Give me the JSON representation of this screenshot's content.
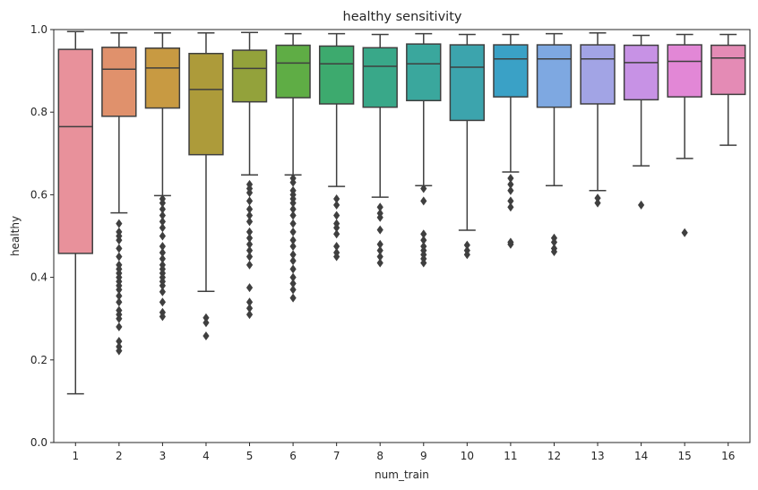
{
  "chart_data": {
    "type": "box",
    "title": "healthy sensitivity",
    "xlabel": "num_train",
    "ylabel": "healthy",
    "ylim": [
      0.0,
      1.0
    ],
    "yticks": [
      0.0,
      0.2,
      0.4,
      0.6,
      0.8,
      1.0
    ],
    "ytick_labels": [
      "0.0",
      "0.2",
      "0.4",
      "0.6",
      "0.8",
      "1.0"
    ],
    "grid": false,
    "legend": "none",
    "categories": [
      "1",
      "2",
      "3",
      "4",
      "5",
      "6",
      "7",
      "8",
      "9",
      "10",
      "11",
      "12",
      "13",
      "14",
      "15",
      "16"
    ],
    "colors": [
      "#e8919b",
      "#e0916c",
      "#c89a42",
      "#ad9b3a",
      "#93a23b",
      "#5fad45",
      "#3daa6e",
      "#39a889",
      "#3aa79d",
      "#3ca4ad",
      "#3aa1c6",
      "#7ea8e1",
      "#a2a4e5",
      "#c792e5",
      "#e287d6",
      "#e48bb5"
    ],
    "boxes": [
      {
        "whislo": 0.118,
        "q1": 0.458,
        "med": 0.765,
        "q3": 0.952,
        "whishi": 0.995,
        "fliers": []
      },
      {
        "whislo": 0.556,
        "q1": 0.79,
        "med": 0.904,
        "q3": 0.957,
        "whishi": 0.992,
        "fliers": [
          0.53,
          0.51,
          0.5,
          0.49,
          0.47,
          0.45,
          0.43,
          0.42,
          0.41,
          0.4,
          0.39,
          0.38,
          0.37,
          0.355,
          0.34,
          0.32,
          0.31,
          0.3,
          0.28,
          0.245,
          0.232,
          0.222
        ]
      },
      {
        "whislo": 0.598,
        "q1": 0.81,
        "med": 0.907,
        "q3": 0.955,
        "whishi": 0.992,
        "fliers": [
          0.59,
          0.58,
          0.565,
          0.55,
          0.535,
          0.52,
          0.5,
          0.475,
          0.46,
          0.445,
          0.43,
          0.42,
          0.41,
          0.4,
          0.39,
          0.38,
          0.365,
          0.34,
          0.315,
          0.305
        ]
      },
      {
        "whislo": 0.366,
        "q1": 0.697,
        "med": 0.855,
        "q3": 0.942,
        "whishi": 0.992,
        "fliers": [
          0.302,
          0.29,
          0.258
        ]
      },
      {
        "whislo": 0.648,
        "q1": 0.825,
        "med": 0.906,
        "q3": 0.95,
        "whishi": 0.993,
        "fliers": [
          0.625,
          0.615,
          0.605,
          0.585,
          0.565,
          0.55,
          0.535,
          0.51,
          0.495,
          0.48,
          0.465,
          0.45,
          0.43,
          0.375,
          0.34,
          0.325,
          0.31
        ]
      },
      {
        "whislo": 0.648,
        "q1": 0.835,
        "med": 0.919,
        "q3": 0.962,
        "whishi": 0.99,
        "fliers": [
          0.64,
          0.63,
          0.61,
          0.6,
          0.59,
          0.58,
          0.565,
          0.55,
          0.53,
          0.51,
          0.49,
          0.475,
          0.455,
          0.44,
          0.42,
          0.4,
          0.385,
          0.37,
          0.35
        ]
      },
      {
        "whislo": 0.62,
        "q1": 0.82,
        "med": 0.917,
        "q3": 0.96,
        "whishi": 0.99,
        "fliers": [
          0.59,
          0.575,
          0.55,
          0.53,
          0.52,
          0.505,
          0.475,
          0.46,
          0.45
        ]
      },
      {
        "whislo": 0.594,
        "q1": 0.812,
        "med": 0.911,
        "q3": 0.956,
        "whishi": 0.988,
        "fliers": [
          0.57,
          0.555,
          0.545,
          0.515,
          0.48,
          0.465,
          0.45,
          0.435
        ]
      },
      {
        "whislo": 0.622,
        "q1": 0.828,
        "med": 0.917,
        "q3": 0.965,
        "whishi": 0.99,
        "fliers": [
          0.615,
          0.585,
          0.505,
          0.49,
          0.475,
          0.465,
          0.455,
          0.445,
          0.435
        ]
      },
      {
        "whislo": 0.514,
        "q1": 0.78,
        "med": 0.909,
        "q3": 0.963,
        "whishi": 0.988,
        "fliers": [
          0.478,
          0.465,
          0.455
        ]
      },
      {
        "whislo": 0.655,
        "q1": 0.837,
        "med": 0.929,
        "q3": 0.963,
        "whishi": 0.988,
        "fliers": [
          0.64,
          0.625,
          0.61,
          0.585,
          0.57,
          0.485,
          0.48
        ]
      },
      {
        "whislo": 0.622,
        "q1": 0.812,
        "med": 0.929,
        "q3": 0.963,
        "whishi": 0.99,
        "fliers": [
          0.495,
          0.485,
          0.47,
          0.462
        ]
      },
      {
        "whislo": 0.61,
        "q1": 0.82,
        "med": 0.929,
        "q3": 0.963,
        "whishi": 0.992,
        "fliers": [
          0.592,
          0.58
        ]
      },
      {
        "whislo": 0.67,
        "q1": 0.83,
        "med": 0.92,
        "q3": 0.962,
        "whishi": 0.986,
        "fliers": [
          0.575
        ]
      },
      {
        "whislo": 0.688,
        "q1": 0.837,
        "med": 0.923,
        "q3": 0.963,
        "whishi": 0.988,
        "fliers": [
          0.508
        ]
      },
      {
        "whislo": 0.72,
        "q1": 0.843,
        "med": 0.931,
        "q3": 0.962,
        "whishi": 0.988,
        "fliers": []
      }
    ]
  }
}
